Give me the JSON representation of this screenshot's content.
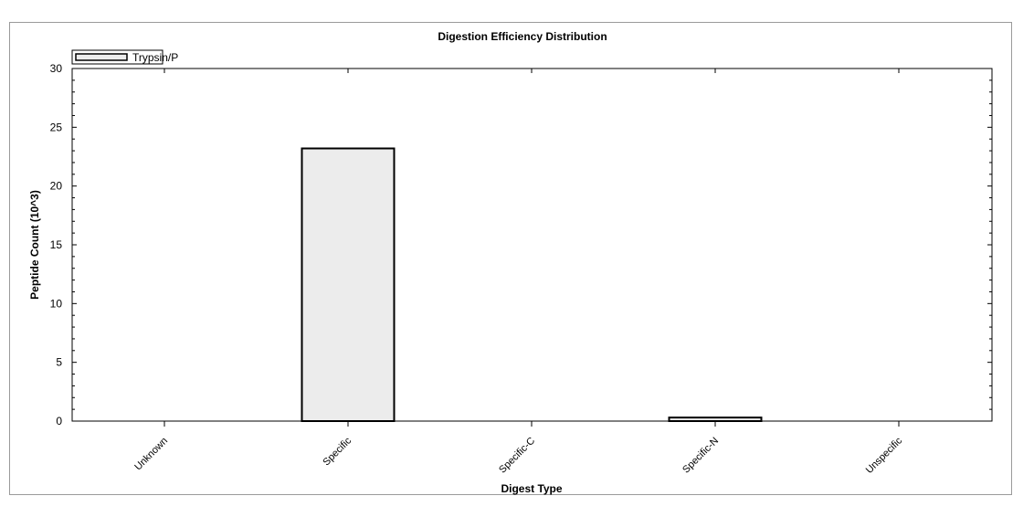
{
  "chart_data": {
    "type": "bar",
    "title": "Digestion Efficiency Distribution",
    "xlabel": "Digest Type",
    "ylabel": "Peptide Count (10^3)",
    "categories": [
      "Unknown",
      "Specific",
      "Specific-C",
      "Specific-N",
      "Unspecific"
    ],
    "series": [
      {
        "name": "Trypsin/P",
        "values": [
          0,
          23.2,
          0,
          0.3,
          0
        ],
        "fill": "#ececec",
        "stroke": "#000000"
      }
    ],
    "yticks": [
      "0",
      "5",
      "10",
      "15",
      "20",
      "25",
      "30"
    ],
    "ylim": [
      0,
      30
    ],
    "legend_position": "top-left",
    "grid": false
  }
}
